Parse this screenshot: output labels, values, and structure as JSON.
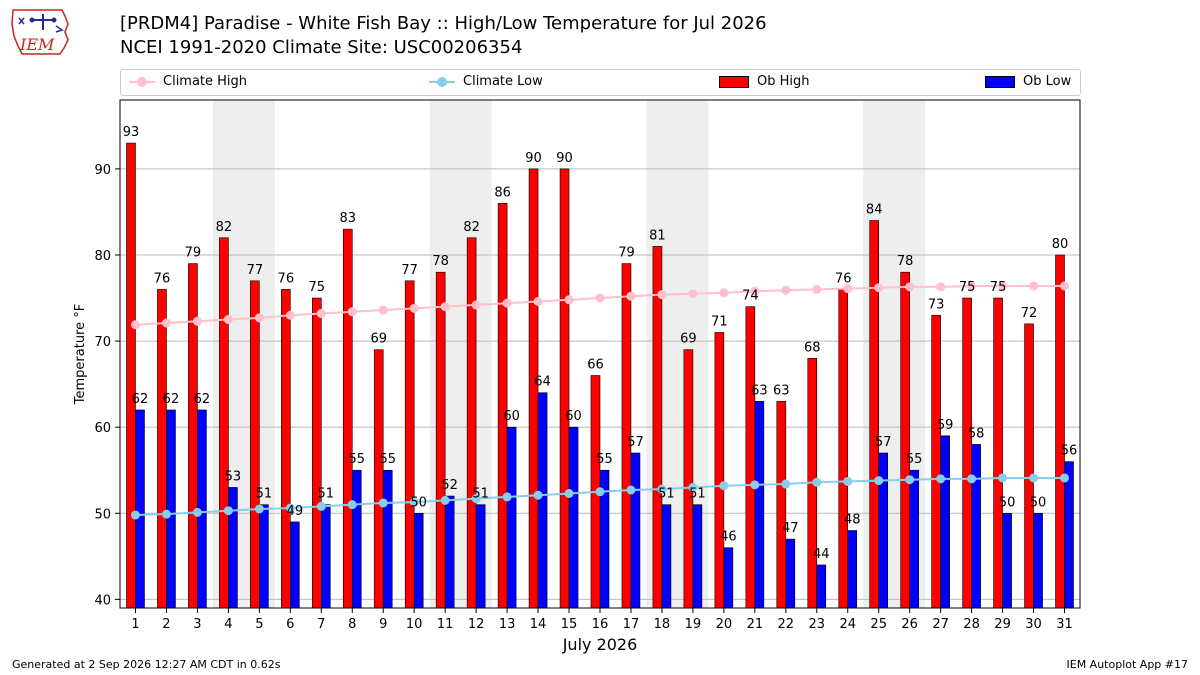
{
  "header": {
    "logo_text": "IEM",
    "title_line1": "[PRDM4] Paradise - White Fish Bay :: High/Low Temperature for Jul 2026",
    "title_line2": "NCEI 1991-2020 Climate Site: USC00206354"
  },
  "legend": {
    "climate_high": "Climate High",
    "climate_low": "Climate Low",
    "ob_high": "Ob High",
    "ob_low": "Ob Low"
  },
  "colors": {
    "climate_high": "#ffc0cb",
    "climate_low": "#87ceeb",
    "ob_high": "#ff0000",
    "ob_low": "#0000ff",
    "weekend_band": "#eeeeee",
    "grid": "#bbbbbb"
  },
  "chart_data": {
    "type": "bar",
    "title": "[PRDM4] Paradise - White Fish Bay :: High/Low Temperature for Jul 2026",
    "subtitle": "NCEI 1991-2020 Climate Site: USC00206354",
    "xlabel": "July 2026",
    "ylabel": "Temperature °F",
    "ylim": [
      39,
      98
    ],
    "yticks": [
      40,
      50,
      60,
      70,
      80,
      90
    ],
    "grid": true,
    "legend_position": "top",
    "categories": [
      "1",
      "2",
      "3",
      "4",
      "5",
      "6",
      "7",
      "8",
      "9",
      "10",
      "11",
      "12",
      "13",
      "14",
      "15",
      "16",
      "17",
      "18",
      "19",
      "20",
      "21",
      "22",
      "23",
      "24",
      "25",
      "26",
      "27",
      "28",
      "29",
      "30",
      "31"
    ],
    "shaded_days": [
      4,
      5,
      11,
      12,
      18,
      19,
      25,
      26
    ],
    "series": [
      {
        "name": "Ob High",
        "kind": "bar",
        "values": [
          93,
          76,
          79,
          82,
          77,
          76,
          75,
          83,
          69,
          77,
          78,
          82,
          86,
          90,
          90,
          66,
          79,
          81,
          69,
          71,
          74,
          63,
          68,
          76,
          84,
          78,
          73,
          75,
          75,
          72,
          80
        ]
      },
      {
        "name": "Ob Low",
        "kind": "bar",
        "values": [
          62,
          62,
          62,
          53,
          51,
          49,
          51,
          55,
          55,
          50,
          52,
          51,
          60,
          64,
          60,
          55,
          57,
          51,
          51,
          46,
          63,
          47,
          44,
          48,
          57,
          55,
          59,
          58,
          50,
          50,
          56
        ]
      },
      {
        "name": "Climate High",
        "kind": "line",
        "values": [
          71.9,
          72.1,
          72.3,
          72.5,
          72.7,
          73.0,
          73.2,
          73.4,
          73.6,
          73.8,
          74.0,
          74.2,
          74.4,
          74.6,
          74.8,
          75.0,
          75.2,
          75.4,
          75.5,
          75.6,
          75.8,
          75.9,
          76.0,
          76.1,
          76.2,
          76.3,
          76.3,
          76.4,
          76.4,
          76.4,
          76.4
        ]
      },
      {
        "name": "Climate Low",
        "kind": "line",
        "values": [
          49.8,
          49.9,
          50.1,
          50.3,
          50.5,
          50.6,
          50.8,
          51.0,
          51.2,
          51.3,
          51.5,
          51.7,
          51.9,
          52.1,
          52.3,
          52.5,
          52.7,
          52.8,
          53.0,
          53.2,
          53.3,
          53.4,
          53.6,
          53.7,
          53.8,
          53.9,
          54.0,
          54.0,
          54.1,
          54.1,
          54.1
        ]
      }
    ]
  },
  "footer": {
    "generated": "Generated at 2 Sep 2026 12:27 AM CDT in 0.62s",
    "app": "IEM Autoplot App #17"
  }
}
